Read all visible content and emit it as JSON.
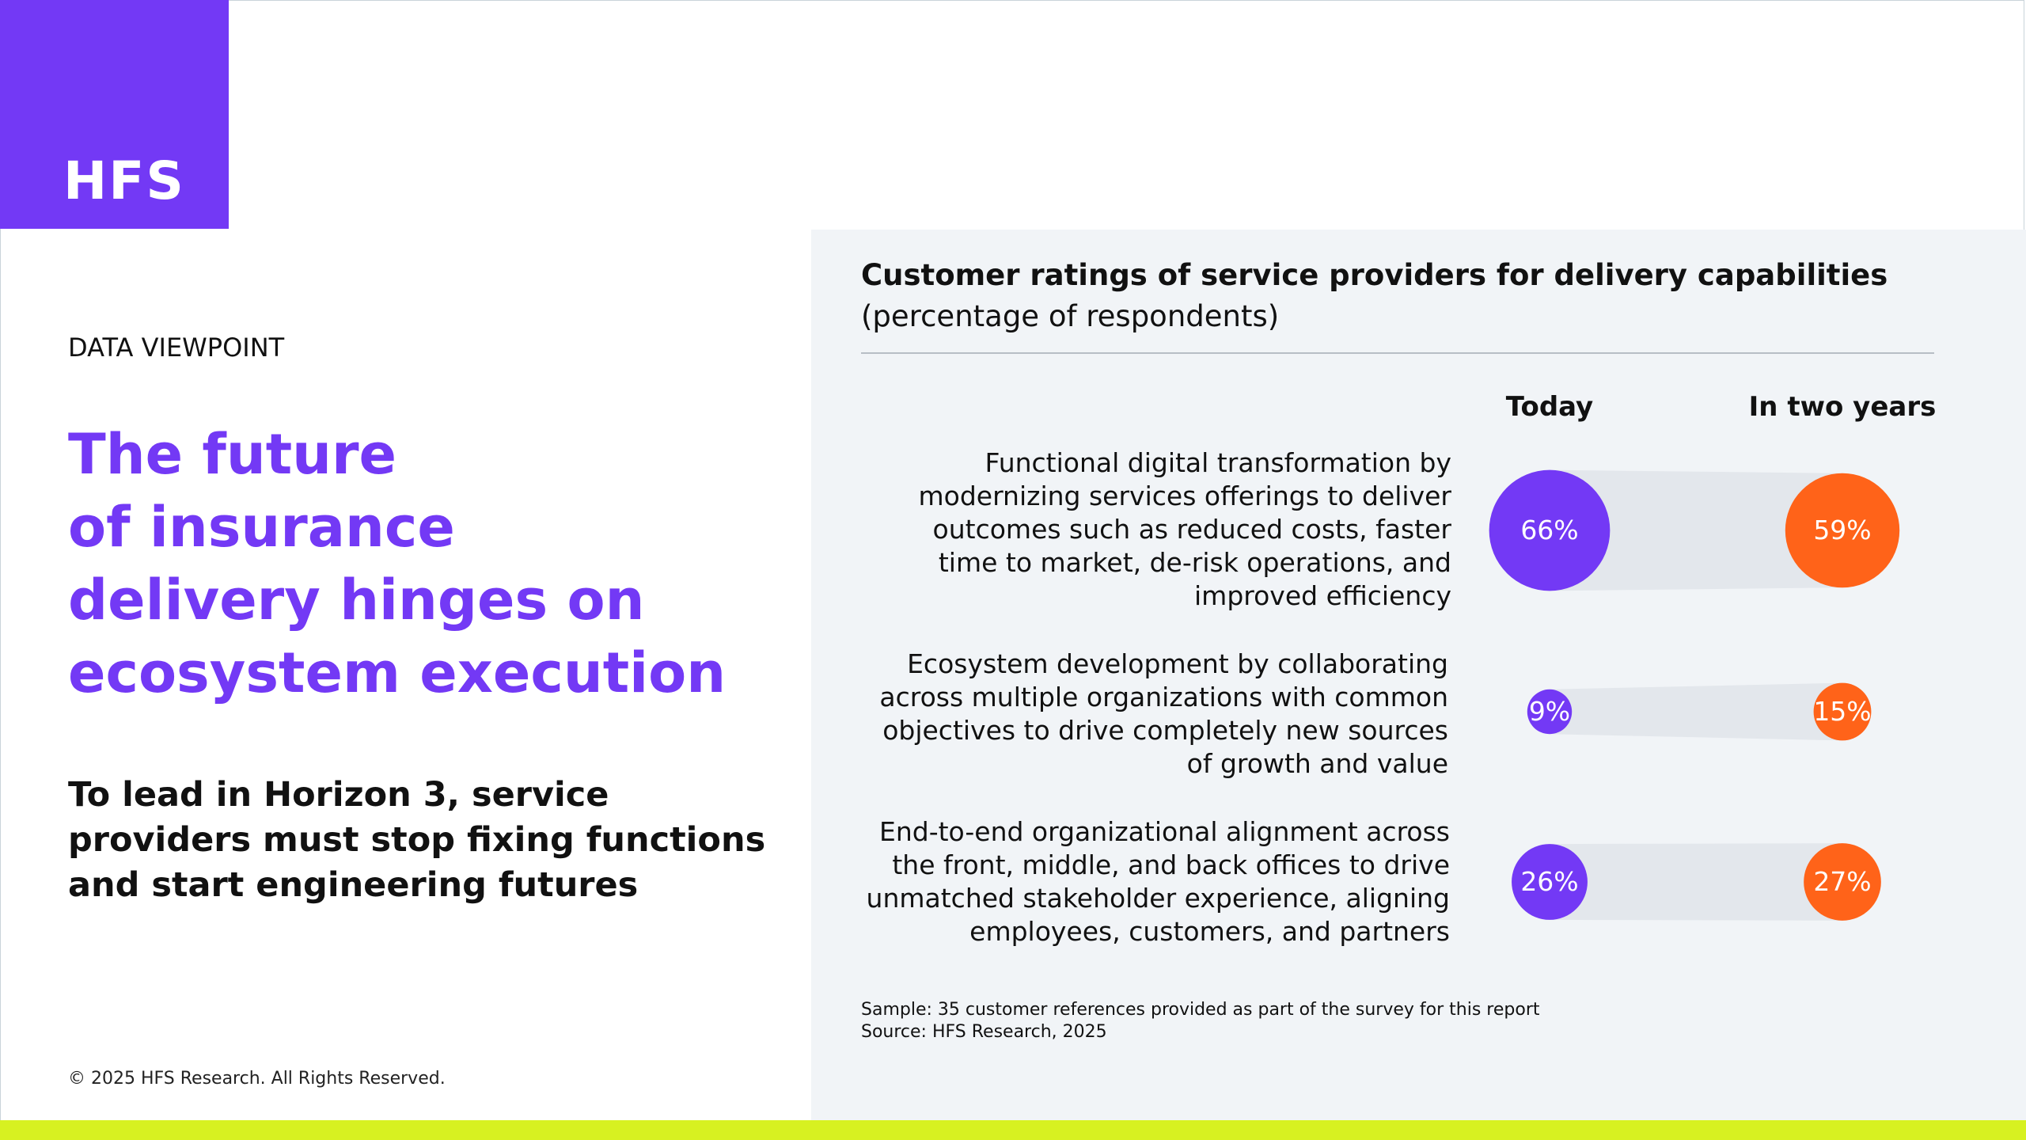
{
  "brand": {
    "logo_text": "HFS",
    "accent_color": "#7339f5",
    "today_color": "#7339f5",
    "future_color": "#ff6319",
    "highlight_color": "#d7f121"
  },
  "left": {
    "kicker": "DATA VIEWPOINT",
    "headline_lines": [
      "The future",
      "of insurance",
      "delivery hinges on",
      "ecosystem execution"
    ],
    "subhead": "To lead in Horizon 3, service providers must stop fixing functions and start engineering futures",
    "copyright": "© 2025 HFS Research. All Rights Reserved."
  },
  "chart_data": {
    "type": "bubble-comparison",
    "title": "Customer ratings of service providers for delivery capabilities",
    "subtitle": "(percentage of respondents)",
    "columns": [
      "Today",
      "In two years"
    ],
    "categories": [
      "Functional digital transformation by modernizing services offerings to deliver outcomes such as reduced costs, faster time to market, de-risk operations, and improved efficiency",
      "Ecosystem development by collaborating across multiple organizations with common objectives to drive completely new sources of growth and value",
      "End-to-end organizational alignment across the front, middle, and back offices to drive unmatched stakeholder experience, aligning employees, customers, and partners"
    ],
    "category_lines": [
      [
        "Functional digital transformation by",
        "modernizing services offerings to deliver",
        "outcomes such as reduced costs, faster",
        "time to market, de-risk operations, and",
        "improved efficiency"
      ],
      [
        "Ecosystem development by collaborating",
        "across multiple organizations with common",
        "objectives to drive completely new sources",
        "of growth and value"
      ],
      [
        "End-to-end organizational alignment across",
        "the front, middle, and back offices to drive",
        "unmatched stakeholder experience, aligning",
        "employees, customers, and partners"
      ]
    ],
    "series": [
      {
        "name": "Today",
        "values": [
          66,
          9,
          26
        ],
        "labels": [
          "66%",
          "9%",
          "26%"
        ]
      },
      {
        "name": "In two years",
        "values": [
          59,
          15,
          27
        ],
        "labels": [
          "59%",
          "15%",
          "27%"
        ]
      }
    ],
    "unit": "%"
  },
  "footer": {
    "sample": "Sample: 35 customer references provided as part of the survey for this report",
    "source": "Source: HFS Research, 2025"
  }
}
